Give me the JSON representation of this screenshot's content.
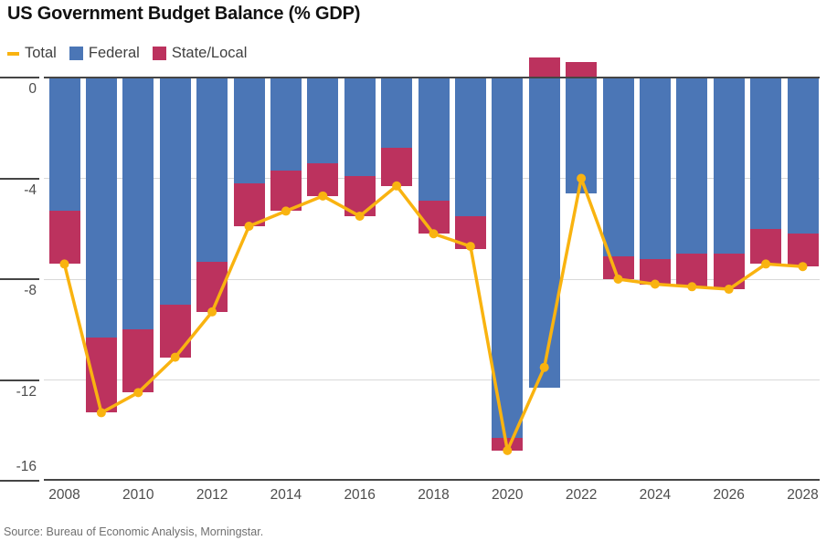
{
  "title": "US Government Budget Balance (% GDP)",
  "legend": [
    {
      "label": "Total",
      "marker": "dash",
      "color": "#f9b310"
    },
    {
      "label": "Federal",
      "marker": "square",
      "color": "#4b76b6"
    },
    {
      "label": "State/Local",
      "marker": "square",
      "color": "#bc325e"
    }
  ],
  "source": "Source: Bureau of Economic Analysis, Morningstar.",
  "chart_data": {
    "type": "bar",
    "subtype": "stacked-bars-with-line-overlay",
    "title": "US Government Budget Balance (% GDP)",
    "categories": [
      "2008",
      "2009",
      "2010",
      "2011",
      "2012",
      "2013",
      "2014",
      "2015",
      "2016",
      "2017",
      "2018",
      "2019",
      "2020",
      "2021",
      "2022",
      "2023",
      "2024",
      "2025",
      "2026",
      "2027",
      "2028"
    ],
    "series": [
      {
        "name": "Federal",
        "type": "bar",
        "color": "#4b76b6",
        "values": [
          -5.3,
          -10.3,
          -10.0,
          -9.0,
          -7.3,
          -4.2,
          -3.7,
          -3.4,
          -3.9,
          -2.8,
          -4.9,
          -5.5,
          -14.3,
          -12.3,
          -4.6,
          -7.1,
          -7.2,
          -7.0,
          -7.0,
          -6.0,
          -6.2
        ]
      },
      {
        "name": "State/Local",
        "type": "bar",
        "color": "#bc325e",
        "values": [
          -2.1,
          -3.0,
          -2.5,
          -2.1,
          -2.0,
          -1.7,
          -1.6,
          -1.3,
          -1.6,
          -1.5,
          -1.3,
          -1.3,
          -0.5,
          0.8,
          0.6,
          -0.9,
          -1.0,
          -1.3,
          -1.4,
          -1.4,
          -1.3
        ]
      },
      {
        "name": "Total",
        "type": "line",
        "color": "#f9b310",
        "values": [
          -7.4,
          -13.3,
          -12.5,
          -11.1,
          -9.3,
          -5.9,
          -5.3,
          -4.7,
          -5.5,
          -4.3,
          -6.2,
          -6.7,
          -14.8,
          -11.5,
          -4.0,
          -8.0,
          -8.2,
          -8.3,
          -8.4,
          -7.4,
          -7.5
        ]
      }
    ],
    "ylim": [
      -16,
      0
    ],
    "yticks": [
      0,
      -4,
      -8,
      -12,
      -16
    ],
    "ytick_labels": [
      "0",
      "-4",
      "-8",
      "-12",
      "-16"
    ],
    "xtick_labels": [
      "2008",
      "2010",
      "2012",
      "2014",
      "2016",
      "2018",
      "2020",
      "2022",
      "2024",
      "2026",
      "2028"
    ],
    "grid": "horizontal",
    "legend_position": "top-left",
    "ylabel": "",
    "xlabel": ""
  }
}
